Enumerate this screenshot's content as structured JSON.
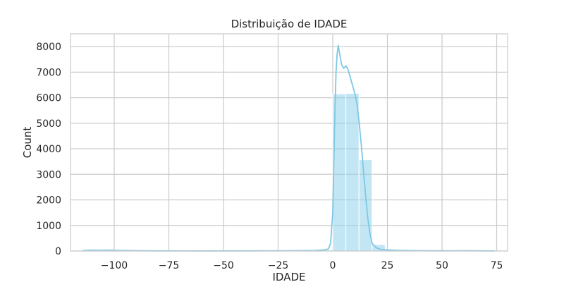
{
  "chart_data": {
    "type": "bar",
    "title": "Distribuição de IDADE",
    "xlabel": "IDADE",
    "ylabel": "Count",
    "xlim": [
      -120,
      80
    ],
    "ylim": [
      0,
      8500
    ],
    "xticks": [
      -100,
      -75,
      -50,
      -25,
      0,
      25,
      50,
      75
    ],
    "xtick_labels": [
      "−100",
      "−75",
      "−50",
      "−25",
      "0",
      "25",
      "50",
      "75"
    ],
    "yticks": [
      0,
      1000,
      2000,
      3000,
      4000,
      5000,
      6000,
      7000,
      8000
    ],
    "ytick_labels": [
      "0",
      "1000",
      "2000",
      "3000",
      "4000",
      "5000",
      "6000",
      "7000",
      "8000"
    ],
    "grid": true,
    "bar_color": "#87ceeb",
    "kde_color": "#7ec8e3",
    "bins": [
      {
        "x0": -114,
        "x1": -108,
        "count": 30
      },
      {
        "x0": -108,
        "x1": -102,
        "count": 20
      },
      {
        "x0": -102,
        "x1": -96,
        "count": 25
      },
      {
        "x0": -96,
        "x1": -90,
        "count": 10
      },
      {
        "x0": -30,
        "x1": -24,
        "count": 5
      },
      {
        "x0": -24,
        "x1": -18,
        "count": 8
      },
      {
        "x0": -18,
        "x1": -12,
        "count": 10
      },
      {
        "x0": -12,
        "x1": -6,
        "count": 15
      },
      {
        "x0": -6,
        "x1": 0,
        "count": 40
      },
      {
        "x0": 0,
        "x1": 6,
        "count": 6150
      },
      {
        "x0": 6,
        "x1": 12,
        "count": 6170
      },
      {
        "x0": 12,
        "x1": 18,
        "count": 3570
      },
      {
        "x0": 18,
        "x1": 24,
        "count": 250
      },
      {
        "x0": 24,
        "x1": 30,
        "count": 40
      },
      {
        "x0": 30,
        "x1": 36,
        "count": 20
      },
      {
        "x0": 36,
        "x1": 42,
        "count": 10
      },
      {
        "x0": 48,
        "x1": 54,
        "count": 5
      },
      {
        "x0": 54,
        "x1": 60,
        "count": 15
      },
      {
        "x0": 66,
        "x1": 72,
        "count": 5
      }
    ],
    "kde": {
      "x": [
        -114,
        -110,
        -106,
        -102,
        -98,
        -94,
        -90,
        -80,
        -60,
        -40,
        -20,
        -8,
        -4,
        -2,
        -1,
        0,
        0.5,
        1,
        1.5,
        2,
        2.5,
        3,
        4,
        5,
        6,
        7,
        8,
        9,
        10,
        11,
        12,
        13,
        14,
        15,
        16,
        17,
        18,
        20,
        22,
        25,
        30,
        40,
        50,
        60,
        70,
        74
      ],
      "y": [
        20,
        30,
        25,
        30,
        20,
        15,
        10,
        5,
        2,
        5,
        10,
        20,
        40,
        80,
        300,
        1500,
        3500,
        5500,
        7000,
        7700,
        8050,
        7800,
        7300,
        7150,
        7250,
        7100,
        6800,
        6500,
        6200,
        5800,
        5100,
        4200,
        3200,
        2200,
        1300,
        700,
        300,
        120,
        60,
        40,
        25,
        10,
        5,
        10,
        5,
        2
      ]
    }
  }
}
